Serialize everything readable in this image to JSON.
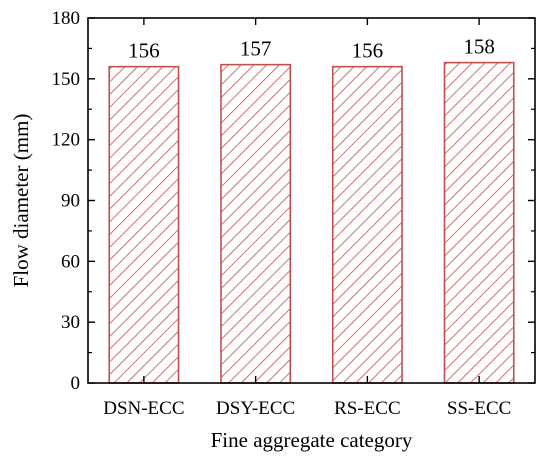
{
  "chart_data": {
    "type": "bar",
    "categories": [
      "DSN-ECC",
      "DSY-ECC",
      "RS-ECC",
      "SS-ECC"
    ],
    "values": [
      156,
      157,
      156,
      158
    ],
    "data_labels": [
      "156",
      "157",
      "156",
      "158"
    ],
    "xlabel": "Fine aggregate category",
    "ylabel": "Flow diameter (mm)",
    "ylim": [
      0,
      180
    ],
    "yticks": [
      0,
      30,
      60,
      90,
      120,
      150,
      180
    ],
    "grid": false,
    "bar_fill": "hatched",
    "bar_color": "#c0504d",
    "hatch_color": "#c0504d"
  }
}
